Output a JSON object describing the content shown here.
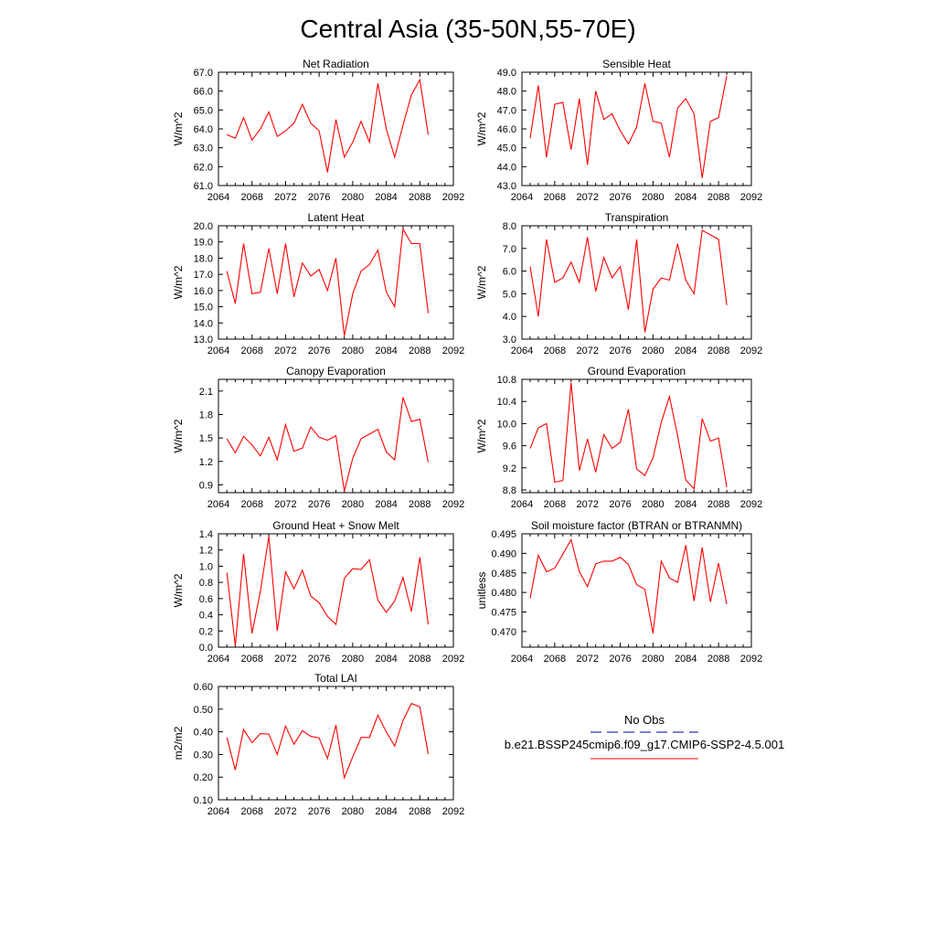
{
  "title": "Central Asia (35-50N,55-70E)",
  "colors": {
    "model": "#ff0000",
    "obs": "#0000a0",
    "frame": "#000000"
  },
  "legend": {
    "obs_label": "No Obs",
    "model_label": "b.e21.BSSP245cmip6.f09_g17.CMIP6-SSP2-4.5.001"
  },
  "chart_data": [
    {
      "type": "line",
      "title": "Net Radiation",
      "ylabel": "W/m^2",
      "xlim": [
        2064,
        2092
      ],
      "ylim": [
        61,
        67
      ],
      "xticks": [
        2064,
        2068,
        2072,
        2076,
        2080,
        2084,
        2088,
        2092
      ],
      "xtick_labels": [
        "2064",
        "2068",
        "2072",
        "2076",
        "2080",
        "2084",
        "2088",
        "2092"
      ],
      "yticks": [
        61,
        62,
        63,
        64,
        65,
        66,
        67
      ],
      "ytick_labels": [
        "61.0",
        "62.0",
        "63.0",
        "64.0",
        "65.0",
        "66.0",
        "67.0"
      ],
      "grid": false,
      "x": [
        2065,
        2066,
        2067,
        2068,
        2069,
        2070,
        2071,
        2072,
        2073,
        2074,
        2075,
        2076,
        2077,
        2078,
        2079,
        2080,
        2081,
        2082,
        2083,
        2084,
        2085,
        2086,
        2087,
        2088,
        2089
      ],
      "series": [
        {
          "values": [
            63.7,
            63.5,
            64.6,
            63.4,
            64.0,
            64.9,
            63.6,
            63.9,
            64.3,
            65.3,
            64.3,
            63.9,
            61.7,
            64.5,
            62.5,
            63.3,
            64.4,
            63.3,
            66.4,
            64.0,
            62.5,
            64.2,
            65.8,
            66.6,
            63.7
          ]
        }
      ]
    },
    {
      "type": "line",
      "title": "Sensible Heat",
      "ylabel": "W/m^2",
      "xlim": [
        2064,
        2092
      ],
      "ylim": [
        43,
        49
      ],
      "xticks": [
        2064,
        2068,
        2072,
        2076,
        2080,
        2084,
        2088,
        2092
      ],
      "xtick_labels": [
        "2064",
        "2068",
        "2072",
        "2076",
        "2080",
        "2084",
        "2088",
        "2092"
      ],
      "yticks": [
        43,
        44,
        45,
        46,
        47,
        48,
        49
      ],
      "ytick_labels": [
        "43.0",
        "44.0",
        "45.0",
        "46.0",
        "47.0",
        "48.0",
        "49.0"
      ],
      "grid": false,
      "x": [
        2065,
        2066,
        2067,
        2068,
        2069,
        2070,
        2071,
        2072,
        2073,
        2074,
        2075,
        2076,
        2077,
        2078,
        2079,
        2080,
        2081,
        2082,
        2083,
        2084,
        2085,
        2086,
        2087,
        2088,
        2089
      ],
      "series": [
        {
          "values": [
            45.5,
            48.3,
            44.5,
            47.3,
            47.4,
            44.9,
            47.6,
            44.1,
            48.0,
            46.5,
            46.8,
            45.9,
            45.2,
            46.1,
            48.4,
            46.4,
            46.3,
            44.5,
            47.1,
            47.6,
            46.8,
            43.4,
            46.4,
            46.6,
            48.8
          ]
        }
      ]
    },
    {
      "type": "line",
      "title": "Latent Heat",
      "ylabel": "W/m^2",
      "xlim": [
        2064,
        2092
      ],
      "ylim": [
        13,
        20
      ],
      "xticks": [
        2064,
        2068,
        2072,
        2076,
        2080,
        2084,
        2088,
        2092
      ],
      "xtick_labels": [
        "2064",
        "2068",
        "2072",
        "2076",
        "2080",
        "2084",
        "2088",
        "2092"
      ],
      "yticks": [
        13,
        14,
        15,
        16,
        17,
        18,
        19,
        20
      ],
      "ytick_labels": [
        "13.0",
        "14.0",
        "15.0",
        "16.0",
        "17.0",
        "18.0",
        "19.0",
        "20.0"
      ],
      "grid": false,
      "x": [
        2065,
        2066,
        2067,
        2068,
        2069,
        2070,
        2071,
        2072,
        2073,
        2074,
        2075,
        2076,
        2077,
        2078,
        2079,
        2080,
        2081,
        2082,
        2083,
        2084,
        2085,
        2086,
        2087,
        2088,
        2089
      ],
      "series": [
        {
          "values": [
            17.2,
            15.2,
            18.9,
            15.8,
            15.9,
            18.6,
            15.8,
            18.9,
            15.6,
            17.7,
            16.9,
            17.3,
            16.0,
            18.0,
            13.2,
            15.8,
            17.2,
            17.6,
            18.5,
            15.9,
            15.0,
            19.8,
            18.9,
            18.9,
            14.6
          ]
        }
      ]
    },
    {
      "type": "line",
      "title": "Transpiration",
      "ylabel": "W/m^2",
      "xlim": [
        2064,
        2092
      ],
      "ylim": [
        3,
        8
      ],
      "xticks": [
        2064,
        2068,
        2072,
        2076,
        2080,
        2084,
        2088,
        2092
      ],
      "xtick_labels": [
        "2064",
        "2068",
        "2072",
        "2076",
        "2080",
        "2084",
        "2088",
        "2092"
      ],
      "yticks": [
        3,
        4,
        5,
        6,
        7,
        8
      ],
      "ytick_labels": [
        "3.0",
        "4.0",
        "5.0",
        "6.0",
        "7.0",
        "8.0"
      ],
      "grid": false,
      "x": [
        2065,
        2066,
        2067,
        2068,
        2069,
        2070,
        2071,
        2072,
        2073,
        2074,
        2075,
        2076,
        2077,
        2078,
        2079,
        2080,
        2081,
        2082,
        2083,
        2084,
        2085,
        2086,
        2087,
        2088,
        2089
      ],
      "series": [
        {
          "values": [
            6.2,
            4.0,
            7.4,
            5.5,
            5.7,
            6.4,
            5.5,
            7.5,
            5.1,
            6.6,
            5.7,
            6.2,
            4.3,
            7.4,
            3.3,
            5.2,
            5.7,
            5.6,
            7.2,
            5.6,
            5.0,
            7.8,
            7.6,
            7.4,
            4.5
          ]
        }
      ]
    },
    {
      "type": "line",
      "title": "Canopy Evaporation",
      "ylabel": "W/m^2",
      "xlim": [
        2064,
        2092
      ],
      "ylim": [
        0.8,
        2.25
      ],
      "xticks": [
        2064,
        2068,
        2072,
        2076,
        2080,
        2084,
        2088,
        2092
      ],
      "xtick_labels": [
        "2064",
        "2068",
        "2072",
        "2076",
        "2080",
        "2084",
        "2088",
        "2092"
      ],
      "yticks": [
        0.9,
        1.2,
        1.5,
        1.8,
        2.1
      ],
      "ytick_labels": [
        "0.9",
        "1.2",
        "1.5",
        "1.8",
        "2.1"
      ],
      "grid": false,
      "x": [
        2065,
        2066,
        2067,
        2068,
        2069,
        2070,
        2071,
        2072,
        2073,
        2074,
        2075,
        2076,
        2077,
        2078,
        2079,
        2080,
        2081,
        2082,
        2083,
        2084,
        2085,
        2086,
        2087,
        2088,
        2089
      ],
      "series": [
        {
          "values": [
            1.49,
            1.31,
            1.52,
            1.41,
            1.27,
            1.51,
            1.22,
            1.67,
            1.33,
            1.37,
            1.64,
            1.51,
            1.47,
            1.53,
            0.82,
            1.24,
            1.49,
            1.55,
            1.61,
            1.32,
            1.22,
            2.02,
            1.71,
            1.74,
            1.19
          ]
        }
      ]
    },
    {
      "type": "line",
      "title": "Ground Evaporation",
      "ylabel": "W/m^2",
      "xlim": [
        2064,
        2092
      ],
      "ylim": [
        8.75,
        10.8
      ],
      "xticks": [
        2064,
        2068,
        2072,
        2076,
        2080,
        2084,
        2088,
        2092
      ],
      "xtick_labels": [
        "2064",
        "2068",
        "2072",
        "2076",
        "2080",
        "2084",
        "2088",
        "2092"
      ],
      "yticks": [
        8.8,
        9.2,
        9.6,
        10.0,
        10.4,
        10.8
      ],
      "ytick_labels": [
        "8.8",
        "9.2",
        "9.6",
        "10.0",
        "10.4",
        "10.8"
      ],
      "grid": false,
      "x": [
        2065,
        2066,
        2067,
        2068,
        2069,
        2070,
        2071,
        2072,
        2073,
        2074,
        2075,
        2076,
        2077,
        2078,
        2079,
        2080,
        2081,
        2082,
        2083,
        2084,
        2085,
        2086,
        2087,
        2088,
        2089
      ],
      "series": [
        {
          "values": [
            9.55,
            9.92,
            10.0,
            8.94,
            8.97,
            10.74,
            9.15,
            9.72,
            9.12,
            9.8,
            9.55,
            9.66,
            10.26,
            9.18,
            9.06,
            9.38,
            10.02,
            10.49,
            9.78,
            8.98,
            8.82,
            10.09,
            9.68,
            9.74,
            8.85
          ]
        }
      ]
    },
    {
      "type": "line",
      "title": "Ground Heat + Snow Melt",
      "ylabel": "W/m^2",
      "xlim": [
        2064,
        2092
      ],
      "ylim": [
        0,
        1.4
      ],
      "xticks": [
        2064,
        2068,
        2072,
        2076,
        2080,
        2084,
        2088,
        2092
      ],
      "xtick_labels": [
        "2064",
        "2068",
        "2072",
        "2076",
        "2080",
        "2084",
        "2088",
        "2092"
      ],
      "yticks": [
        0,
        0.2,
        0.4,
        0.6,
        0.8,
        1.0,
        1.2,
        1.4
      ],
      "ytick_labels": [
        "0.0",
        "0.2",
        "0.4",
        "0.6",
        "0.8",
        "1.0",
        "1.2",
        "1.4"
      ],
      "grid": false,
      "x": [
        2065,
        2066,
        2067,
        2068,
        2069,
        2070,
        2071,
        2072,
        2073,
        2074,
        2075,
        2076,
        2077,
        2078,
        2079,
        2080,
        2081,
        2082,
        2083,
        2084,
        2085,
        2086,
        2087,
        2088,
        2089
      ],
      "series": [
        {
          "values": [
            0.92,
            0.02,
            1.15,
            0.17,
            0.69,
            1.37,
            0.2,
            0.93,
            0.72,
            0.95,
            0.63,
            0.55,
            0.38,
            0.28,
            0.85,
            0.97,
            0.96,
            1.08,
            0.58,
            0.43,
            0.57,
            0.86,
            0.44,
            1.11,
            0.28
          ]
        }
      ]
    },
    {
      "type": "line",
      "title": "Soil moisture factor (BTRAN or BTRANMN)",
      "ylabel": "unitless",
      "xlim": [
        2064,
        2092
      ],
      "ylim": [
        0.466,
        0.495
      ],
      "xticks": [
        2064,
        2068,
        2072,
        2076,
        2080,
        2084,
        2088,
        2092
      ],
      "xtick_labels": [
        "2064",
        "2068",
        "2072",
        "2076",
        "2080",
        "2084",
        "2088",
        "2092"
      ],
      "yticks": [
        0.47,
        0.475,
        0.48,
        0.485,
        0.49,
        0.495
      ],
      "ytick_labels": [
        "0.470",
        "0.475",
        "0.480",
        "0.485",
        "0.490",
        "0.495"
      ],
      "grid": false,
      "x": [
        2065,
        2066,
        2067,
        2068,
        2069,
        2070,
        2071,
        2072,
        2073,
        2074,
        2075,
        2076,
        2077,
        2078,
        2079,
        2080,
        2081,
        2082,
        2083,
        2084,
        2085,
        2086,
        2087,
        2088,
        2089
      ],
      "series": [
        {
          "values": [
            0.4785,
            0.4895,
            0.4853,
            0.4862,
            0.4898,
            0.4935,
            0.4853,
            0.4815,
            0.4873,
            0.488,
            0.488,
            0.489,
            0.4872,
            0.482,
            0.4808,
            0.4695,
            0.488,
            0.4837,
            0.4826,
            0.4921,
            0.4778,
            0.4915,
            0.4776,
            0.4875,
            0.477
          ]
        }
      ]
    },
    {
      "type": "line",
      "title": "Total LAI",
      "ylabel": "m2/m2",
      "xlim": [
        2064,
        2092
      ],
      "ylim": [
        0.1,
        0.6
      ],
      "xticks": [
        2064,
        2068,
        2072,
        2076,
        2080,
        2084,
        2088,
        2092
      ],
      "xtick_labels": [
        "2064",
        "2068",
        "2072",
        "2076",
        "2080",
        "2084",
        "2088",
        "2092"
      ],
      "yticks": [
        0.1,
        0.2,
        0.3,
        0.4,
        0.5,
        0.6
      ],
      "ytick_labels": [
        "0.10",
        "0.20",
        "0.30",
        "0.40",
        "0.50",
        "0.60"
      ],
      "grid": false,
      "x": [
        2065,
        2066,
        2067,
        2068,
        2069,
        2070,
        2071,
        2072,
        2073,
        2074,
        2075,
        2076,
        2077,
        2078,
        2079,
        2080,
        2081,
        2082,
        2083,
        2084,
        2085,
        2086,
        2087,
        2088,
        2089
      ],
      "series": [
        {
          "values": [
            0.375,
            0.232,
            0.41,
            0.352,
            0.392,
            0.39,
            0.3,
            0.425,
            0.345,
            0.405,
            0.38,
            0.373,
            0.282,
            0.43,
            0.197,
            0.29,
            0.375,
            0.375,
            0.473,
            0.4,
            0.337,
            0.45,
            0.525,
            0.51,
            0.302
          ]
        }
      ]
    }
  ]
}
